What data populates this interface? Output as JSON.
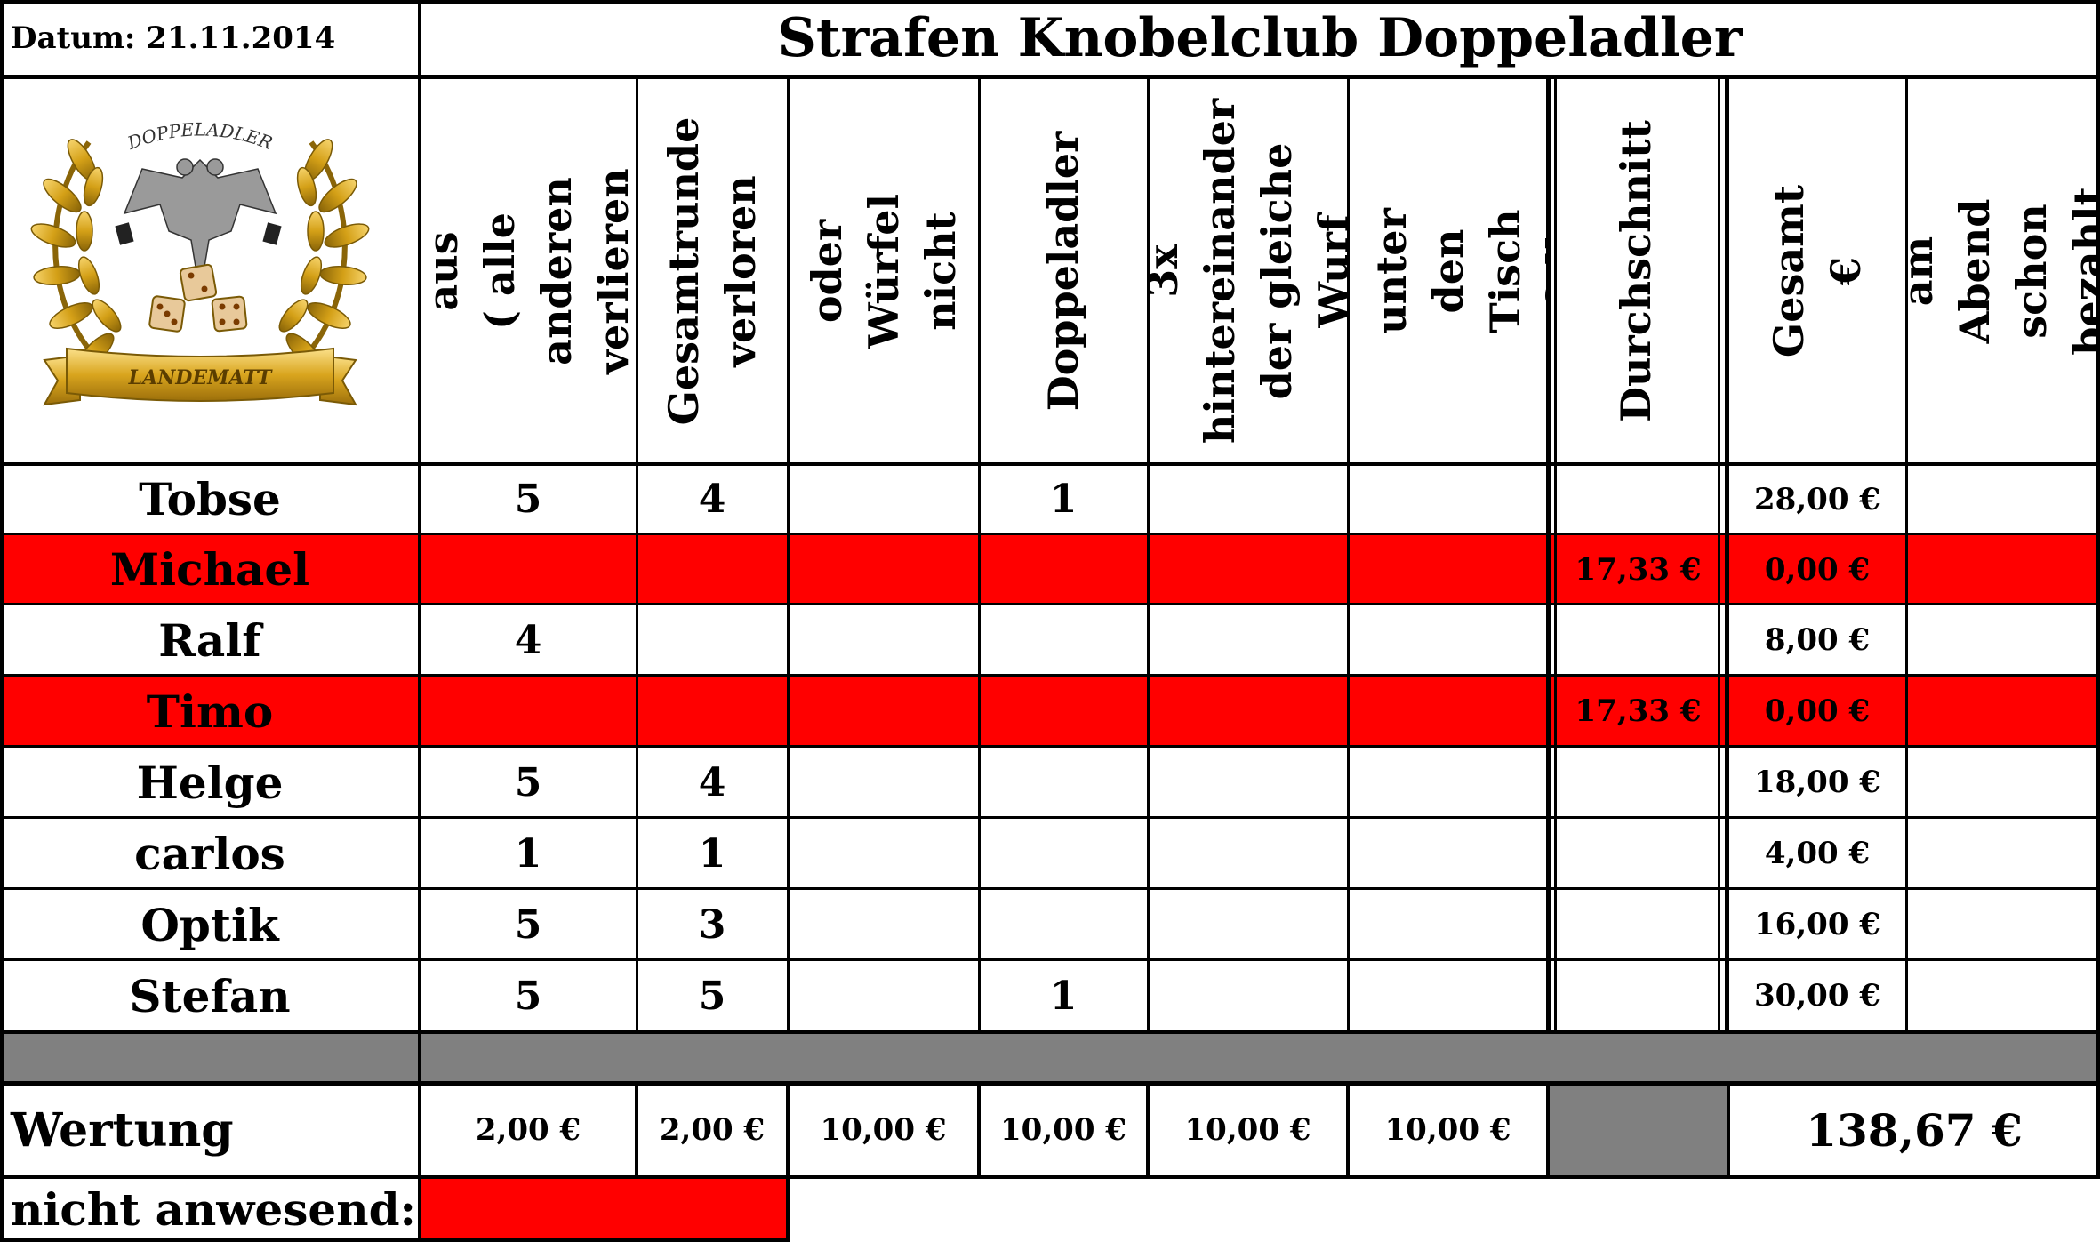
{
  "header": {
    "date_label": "Datum: 21.11.2014",
    "title": "Strafen Knobelclub Doppeladler"
  },
  "logo": {
    "top_text": "DOPPELADLER",
    "banner_text": "LANDEMATT"
  },
  "columns": [
    "Hand aus\n( alle anderen\nverlieren )",
    "Gesamtrunde\nverloren",
    "Becher oder\nWürfel nicht\ndabei",
    "Doppeladler",
    "3x\nhintereinander\nder gleiche\nWurf",
    "Würfel unter\nden Tisch\ngefallen",
    "Durchschnitt",
    "Gesamt €",
    "am Abend\nschon bezahlt"
  ],
  "rows": [
    {
      "name": "Tobse",
      "absent": false,
      "cells": [
        "5",
        "4",
        "",
        "1",
        "",
        "",
        "",
        "28,00 €",
        ""
      ]
    },
    {
      "name": "Michael",
      "absent": true,
      "cells": [
        "",
        "",
        "",
        "",
        "",
        "",
        "17,33 €",
        "0,00 €",
        ""
      ]
    },
    {
      "name": "Ralf",
      "absent": false,
      "cells": [
        "4",
        "",
        "",
        "",
        "",
        "",
        "",
        "8,00 €",
        ""
      ]
    },
    {
      "name": "Timo",
      "absent": true,
      "cells": [
        "",
        "",
        "",
        "",
        "",
        "",
        "17,33 €",
        "0,00 €",
        ""
      ]
    },
    {
      "name": "Helge",
      "absent": false,
      "cells": [
        "5",
        "4",
        "",
        "",
        "",
        "",
        "",
        "18,00 €",
        ""
      ]
    },
    {
      "name": "carlos",
      "absent": false,
      "cells": [
        "1",
        "1",
        "",
        "",
        "",
        "",
        "",
        "4,00 €",
        ""
      ]
    },
    {
      "name": "Optik",
      "absent": false,
      "cells": [
        "5",
        "3",
        "",
        "",
        "",
        "",
        "",
        "16,00 €",
        ""
      ]
    },
    {
      "name": "Stefan",
      "absent": false,
      "cells": [
        "5",
        "5",
        "",
        "1",
        "",
        "",
        "",
        "30,00 €",
        ""
      ]
    }
  ],
  "wertung": {
    "label": "Wertung",
    "values": [
      "2,00 €",
      "2,00 €",
      "10,00 €",
      "10,00 €",
      "10,00 €",
      "10,00 €"
    ],
    "total": "138,67 €"
  },
  "legend": {
    "label": "nicht anwesend:"
  },
  "colors": {
    "absent": "#ff0000",
    "separator": "#808080",
    "gold": "#d4a017"
  }
}
